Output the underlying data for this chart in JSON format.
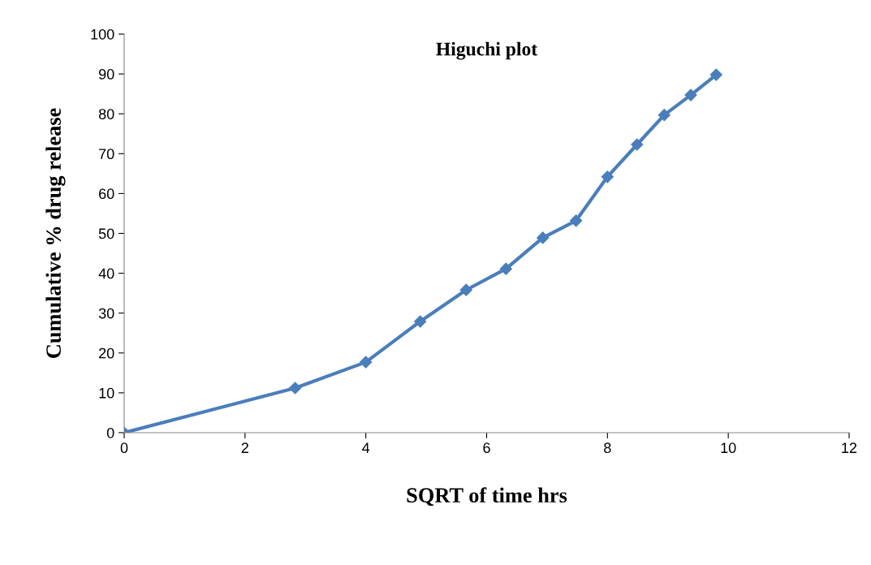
{
  "chart_data": {
    "type": "line",
    "title": "Higuchi plot",
    "xlabel": "SQRT of time hrs",
    "ylabel": "Cumulative % drug release",
    "x": [
      0,
      2.83,
      4,
      4.9,
      5.66,
      6.32,
      6.93,
      7.48,
      8,
      8.49,
      8.94,
      9.38,
      9.8
    ],
    "series": [
      {
        "color": "#4a7ebb",
        "values": [
          0,
          11.2,
          17.7,
          27.9,
          35.8,
          41.1,
          48.9,
          53.2,
          64.2,
          72.3,
          79.7,
          84.7,
          89.8
        ]
      }
    ],
    "xlim": [
      0,
      12
    ],
    "xticks": [
      0,
      2,
      4,
      6,
      8,
      10,
      12
    ],
    "ylim": [
      0,
      100
    ],
    "yticks": [
      0,
      10,
      20,
      30,
      40,
      50,
      60,
      70,
      80,
      90,
      100
    ],
    "grid": false,
    "legend": false,
    "marker": "diamond",
    "line_style": "solid"
  }
}
